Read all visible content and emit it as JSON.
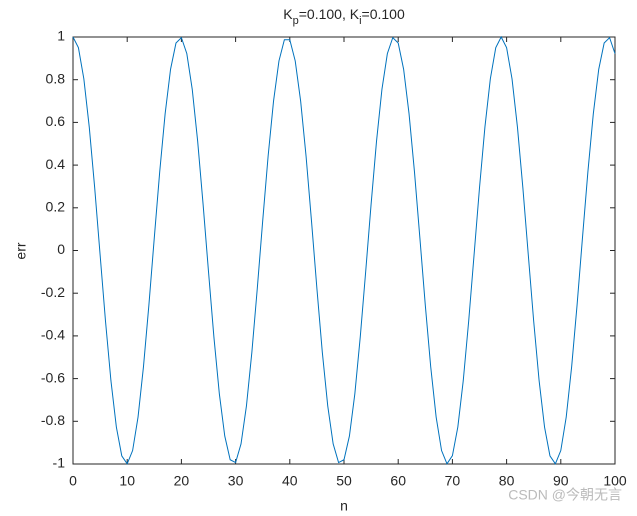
{
  "chart_data": {
    "type": "line",
    "title": [
      {
        "text": "K"
      },
      {
        "text": "p",
        "sub": true
      },
      {
        "text": "=0.100, K"
      },
      {
        "text": "i",
        "sub": true
      },
      {
        "text": "=0.100"
      }
    ],
    "x_label": "n",
    "y_label": "err",
    "watermark": "CSDN @今朝无言",
    "x": [
      0,
      1,
      2,
      3,
      4,
      5,
      6,
      7,
      8,
      9,
      10,
      11,
      12,
      13,
      14,
      15,
      16,
      17,
      18,
      19,
      20,
      21,
      22,
      23,
      24,
      25,
      26,
      27,
      28,
      29,
      30,
      31,
      32,
      33,
      34,
      35,
      36,
      37,
      38,
      39,
      40,
      41,
      42,
      43,
      44,
      45,
      46,
      47,
      48,
      49,
      50,
      51,
      52,
      53,
      54,
      55,
      56,
      57,
      58,
      59,
      60,
      61,
      62,
      63,
      64,
      65,
      66,
      67,
      68,
      69,
      70,
      71,
      72,
      73,
      74,
      75,
      76,
      77,
      78,
      79,
      80,
      81,
      82,
      83,
      84,
      85,
      86,
      87,
      88,
      89,
      90,
      91,
      92,
      93,
      94,
      95,
      96,
      97,
      98,
      99,
      100
    ],
    "series": [
      {
        "name": "err",
        "color": "#0072bd",
        "values": [
          1,
          0.95,
          0.804,
          0.578,
          0.294,
          -0.02,
          -0.332,
          -0.61,
          -0.827,
          -0.962,
          -0.999,
          -0.937,
          -0.78,
          -0.545,
          -0.256,
          0.06,
          0.369,
          0.641,
          0.849,
          0.972,
          0.997,
          0.922,
          0.755,
          0.512,
          0.217,
          -0.099,
          -0.406,
          -0.671,
          -0.869,
          -0.98,
          -0.993,
          -0.906,
          -0.728,
          -0.477,
          -0.178,
          0.139,
          0.442,
          0.7,
          0.888,
          0.987,
          0.987,
          0.888,
          0.7,
          0.442,
          0.139,
          -0.178,
          -0.477,
          -0.728,
          -0.906,
          -0.993,
          -0.98,
          -0.869,
          -0.671,
          -0.405,
          -0.099,
          0.217,
          0.512,
          0.755,
          0.922,
          0.997,
          0.972,
          0.849,
          0.641,
          0.369,
          0.059,
          -0.256,
          -0.545,
          -0.78,
          -0.937,
          -0.999,
          -0.961,
          -0.827,
          -0.61,
          -0.332,
          -0.02,
          0.294,
          0.578,
          0.804,
          0.95,
          1,
          0.95,
          0.804,
          0.578,
          0.294,
          -0.02,
          -0.332,
          -0.61,
          -0.827,
          -0.962,
          -0.999,
          -0.937,
          -0.78,
          -0.545,
          -0.256,
          0.06,
          0.369,
          0.641,
          0.849,
          0.972,
          0.997,
          0.922
        ]
      }
    ],
    "xlim": [
      0,
      100
    ],
    "xticks": [
      0,
      10,
      20,
      30,
      40,
      50,
      60,
      70,
      80,
      90,
      100
    ],
    "ylim": [
      -1,
      1
    ],
    "yticks": [
      -1,
      -0.8,
      -0.6,
      -0.4,
      -0.2,
      0,
      0.2,
      0.4,
      0.6,
      0.8,
      1
    ],
    "grid": false
  }
}
